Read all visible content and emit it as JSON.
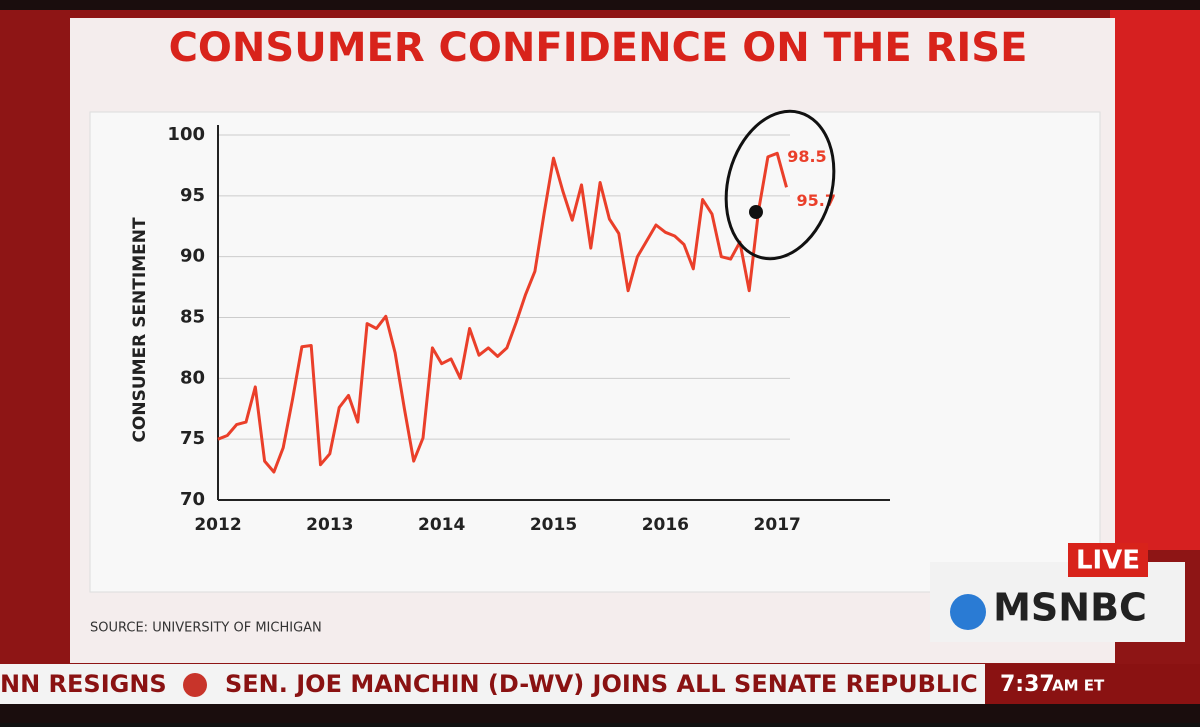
{
  "chart_data": {
    "type": "line",
    "title": "CONSUMER CONFIDENCE ON THE RISE",
    "ylabel": "CONSUMER SENTIMENT",
    "source": "SOURCE: UNIVERSITY OF MICHIGAN",
    "categories": [
      "2012",
      null,
      null,
      null,
      null,
      null,
      null,
      null,
      null,
      null,
      null,
      null,
      "2013",
      null,
      null,
      null,
      null,
      null,
      null,
      null,
      null,
      null,
      null,
      null,
      "2014",
      null,
      null,
      null,
      null,
      null,
      null,
      null,
      null,
      null,
      null,
      null,
      "2015",
      null,
      null,
      null,
      null,
      null,
      null,
      null,
      null,
      null,
      null,
      null,
      "2016",
      null,
      null,
      null,
      null,
      null,
      null,
      null,
      null,
      null,
      null,
      null,
      "2017",
      null
    ],
    "values": [
      75.0,
      75.3,
      76.2,
      76.4,
      79.3,
      73.2,
      72.3,
      74.3,
      78.3,
      82.6,
      82.7,
      72.9,
      73.8,
      77.6,
      78.6,
      76.4,
      84.5,
      84.1,
      85.1,
      82.1,
      77.5,
      73.2,
      75.1,
      82.5,
      81.2,
      81.6,
      80.0,
      84.1,
      81.9,
      82.5,
      81.8,
      82.5,
      84.6,
      86.9,
      88.8,
      93.6,
      98.1,
      95.4,
      93.0,
      95.9,
      90.7,
      96.1,
      93.1,
      91.9,
      87.2,
      90.0,
      91.3,
      92.6,
      92.0,
      91.7,
      91.0,
      89.0,
      94.7,
      93.5,
      90.0,
      89.8,
      91.2,
      87.2,
      93.8,
      98.2,
      98.5,
      95.7
    ],
    "value_labels": [
      null,
      null,
      null,
      null,
      null,
      null,
      null,
      null,
      null,
      null,
      null,
      null,
      null,
      null,
      null,
      null,
      null,
      null,
      null,
      null,
      null,
      null,
      null,
      null,
      null,
      null,
      null,
      null,
      null,
      null,
      null,
      null,
      null,
      null,
      null,
      null,
      null,
      null,
      null,
      null,
      null,
      null,
      null,
      null,
      null,
      null,
      null,
      null,
      null,
      null,
      null,
      null,
      null,
      null,
      null,
      null,
      null,
      null,
      null,
      null,
      "98.5",
      "95.7"
    ],
    "color": "#ea3f2a",
    "ylim": [
      70,
      100
    ],
    "yticks": [
      70,
      75,
      80,
      85,
      90,
      95,
      100
    ],
    "grid": true
  },
  "broadcast": {
    "live": "LIVE",
    "network": "MSNBC",
    "ticker": [
      "NN RESIGNS",
      "SEN. JOE MANCHIN (D-WV) JOINS ALL SENATE REPUBLIC"
    ],
    "time": "7:37",
    "zone": "AM ET"
  }
}
